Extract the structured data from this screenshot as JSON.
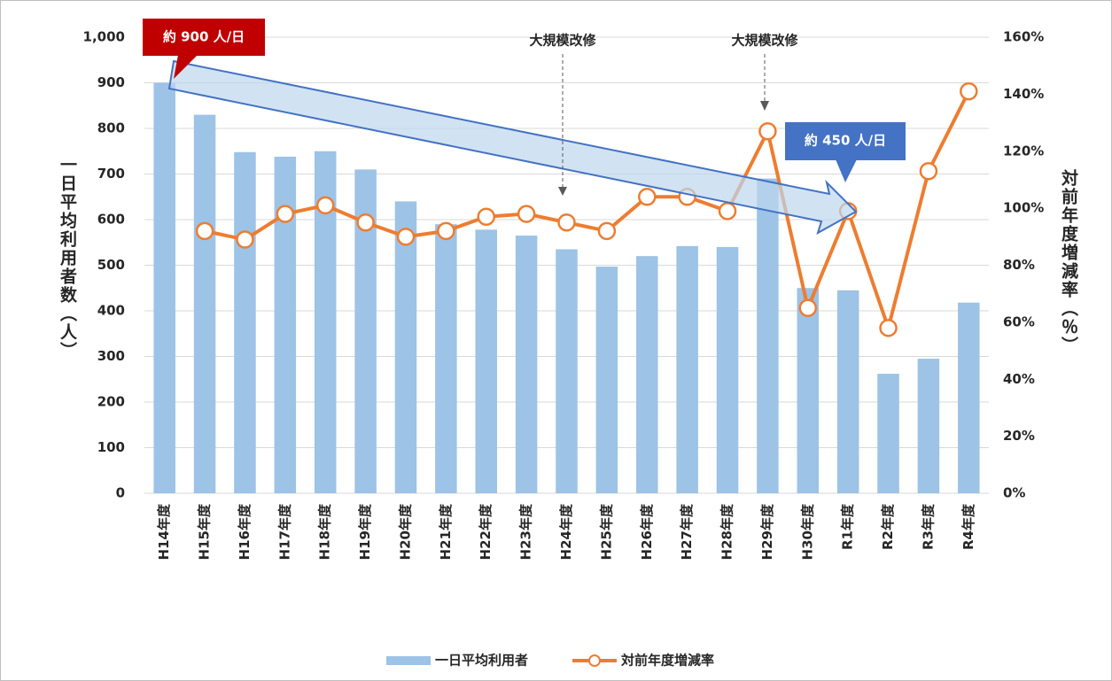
{
  "chart_data": {
    "type": "bar_line",
    "y_axis_title": "一日平均利用者数（人）",
    "y2_axis_title": "対前年度増減率（％）",
    "categories": [
      "H14年度",
      "H15年度",
      "H16年度",
      "H17年度",
      "H18年度",
      "H19年度",
      "H20年度",
      "H21年度",
      "H22年度",
      "H23年度",
      "H24年度",
      "H25年度",
      "H26年度",
      "H27年度",
      "H28年度",
      "H29年度",
      "H30年度",
      "R1年度",
      "R2年度",
      "R3年度",
      "R4年度"
    ],
    "series": [
      {
        "name": "一日平均利用者",
        "color": "#9dc3e6",
        "type": "bar",
        "values": [
          900,
          830,
          748,
          738,
          750,
          710,
          640,
          590,
          578,
          565,
          535,
          497,
          520,
          542,
          540,
          690,
          450,
          445,
          262,
          295,
          418
        ]
      },
      {
        "name": "対前年度増減率",
        "color": "#ed7d31",
        "type": "line",
        "axis": "y2",
        "values": [
          null,
          92,
          89,
          98,
          101,
          95,
          90,
          92,
          97,
          98,
          95,
          92,
          104,
          104,
          99,
          127,
          65,
          99,
          58,
          113,
          141
        ]
      }
    ],
    "ylim": [
      0,
      1000
    ],
    "yticks": [
      0,
      100,
      200,
      300,
      400,
      500,
      600,
      700,
      800,
      900,
      {
        "value": 1000,
        "label": "1,000"
      }
    ],
    "y2lim": [
      0,
      160
    ],
    "y2ticks": [
      {
        "value": 0,
        "label": "0%"
      },
      {
        "value": 20,
        "label": "20%"
      },
      {
        "value": 40,
        "label": "40%"
      },
      {
        "value": 60,
        "label": "60%"
      },
      {
        "value": 80,
        "label": "80%"
      },
      {
        "value": 100,
        "label": "100%"
      },
      {
        "value": 120,
        "label": "120%"
      },
      {
        "value": 140,
        "label": "140%"
      },
      {
        "value": 160,
        "label": "160%"
      }
    ],
    "grid": true,
    "legend": "bottom",
    "annotations": [
      "約 900 人/日",
      "約 450 人/日",
      "大規模改修",
      "大規模改修"
    ]
  }
}
